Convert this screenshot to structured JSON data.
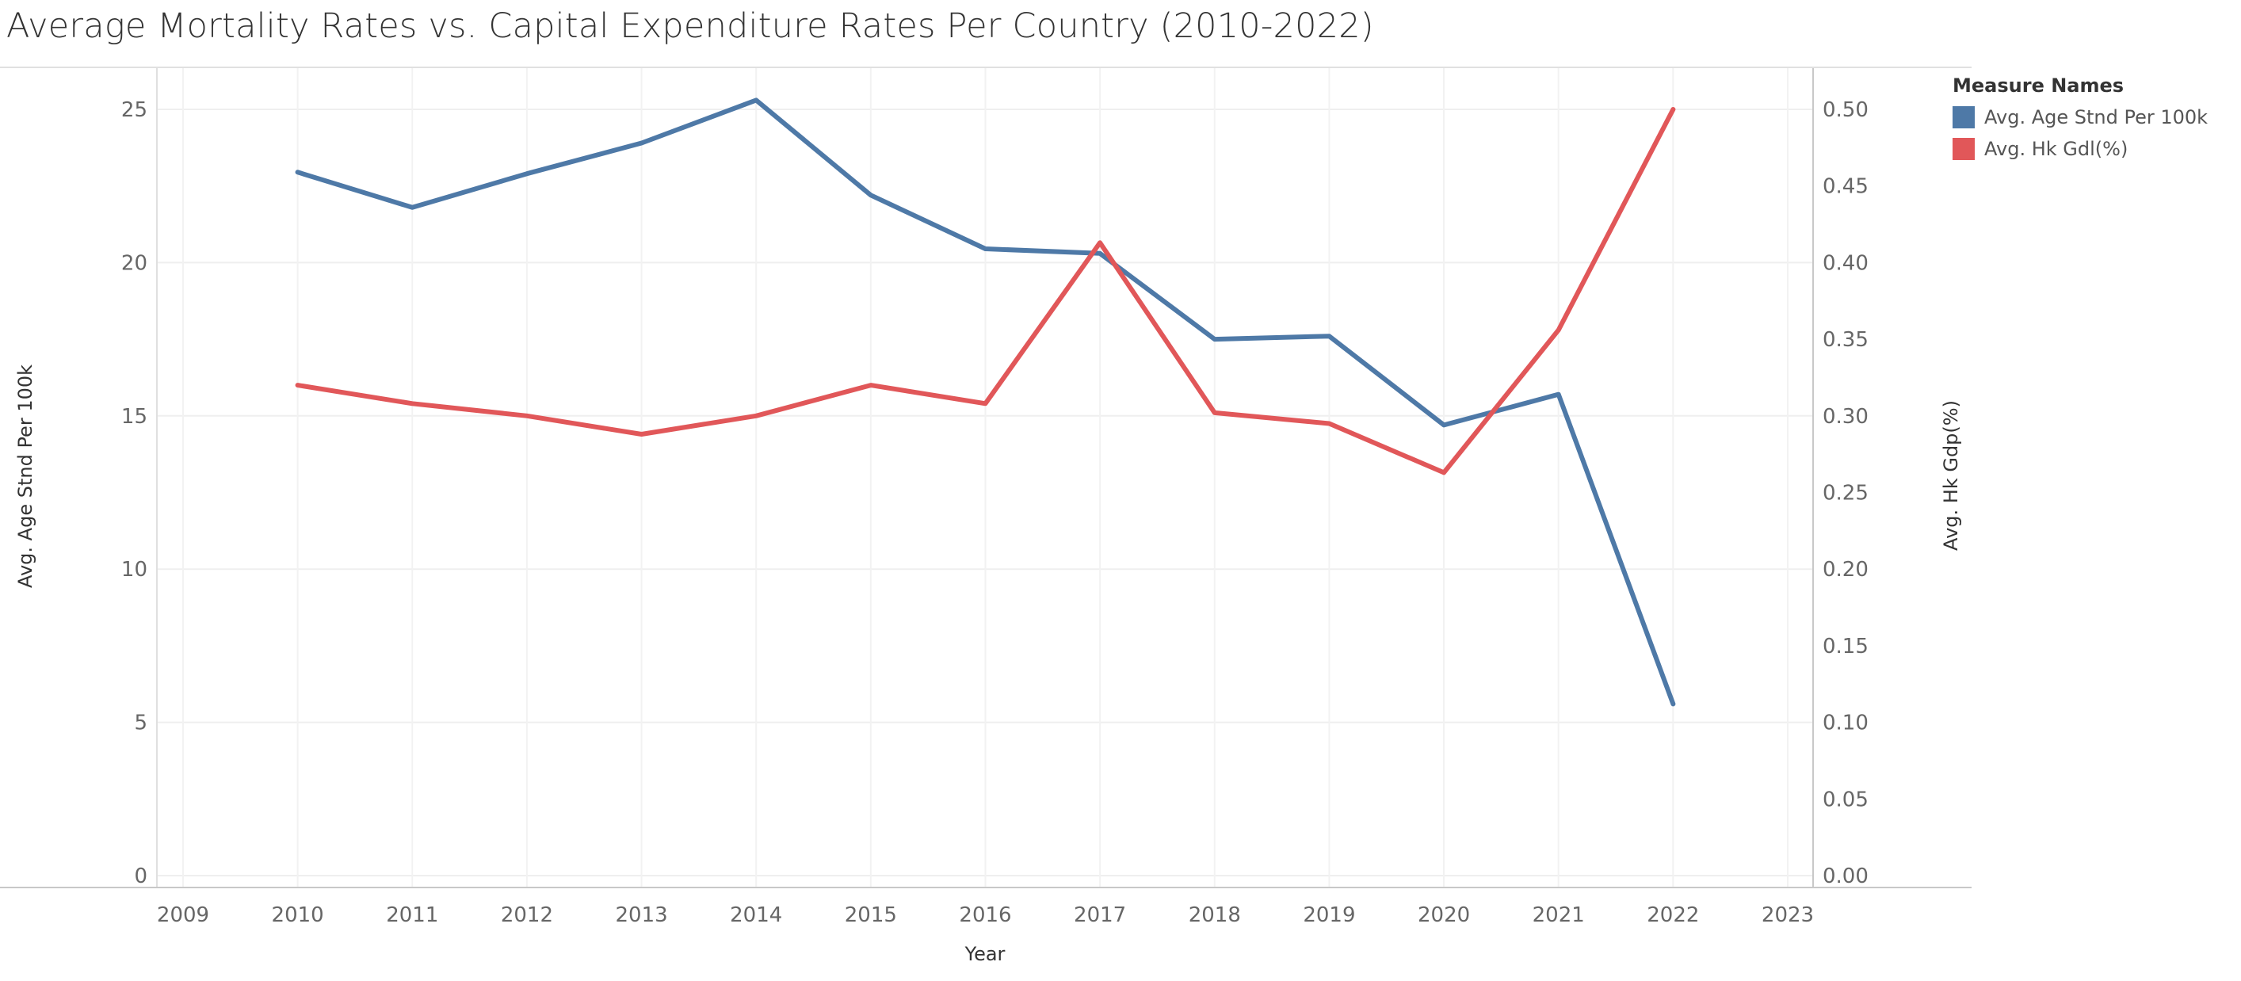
{
  "title": "Average Mortality Rates vs. Capital Expenditure Rates Per Country (2010-2022)",
  "legend": {
    "title": "Measure Names",
    "items": [
      {
        "label": "Avg. Age Stnd Per 100k",
        "color": "#4e79a7"
      },
      {
        "label": "Avg. Hk Gdl(%)",
        "color": "#e15759"
      }
    ]
  },
  "chart_data": {
    "type": "line",
    "title": "Average Mortality Rates vs. Capital Expenditure Rates Per Country (2010-2022)",
    "xlabel": "Year",
    "ylabel_left": "Avg. Age Stnd Per 100k",
    "ylabel_right": "Avg. Hk Gdp(%)",
    "x_ticks": [
      2009,
      2010,
      2011,
      2012,
      2013,
      2014,
      2015,
      2016,
      2017,
      2018,
      2019,
      2020,
      2021,
      2022,
      2023
    ],
    "xlim": [
      2009,
      2023
    ],
    "y_left_ticks": [
      0,
      5,
      10,
      15,
      20,
      25
    ],
    "y_left_lim": [
      0,
      25
    ],
    "y_right_ticks": [
      "0.00",
      "0.05",
      "0.10",
      "0.15",
      "0.20",
      "0.25",
      "0.30",
      "0.35",
      "0.40",
      "0.45",
      "0.50"
    ],
    "y_right_lim": [
      0,
      0.5
    ],
    "grid": true,
    "series": [
      {
        "name": "Avg. Age Stnd Per 100k",
        "axis": "left",
        "color": "#4e79a7",
        "x": [
          2010,
          2011,
          2012,
          2013,
          2014,
          2015,
          2016,
          2017,
          2018,
          2019,
          2020,
          2021,
          2022
        ],
        "values": [
          22.95,
          21.8,
          22.9,
          23.9,
          25.3,
          22.2,
          20.45,
          20.3,
          17.5,
          17.6,
          14.7,
          15.7,
          5.6
        ]
      },
      {
        "name": "Avg. Hk Gdl(%)",
        "axis": "right",
        "color": "#e15759",
        "x": [
          2010,
          2011,
          2012,
          2013,
          2014,
          2015,
          2016,
          2017,
          2018,
          2019,
          2020,
          2021,
          2022
        ],
        "values": [
          0.32,
          0.308,
          0.3,
          0.288,
          0.3,
          0.32,
          0.308,
          0.413,
          0.302,
          0.295,
          0.263,
          0.356,
          0.5
        ]
      }
    ]
  }
}
